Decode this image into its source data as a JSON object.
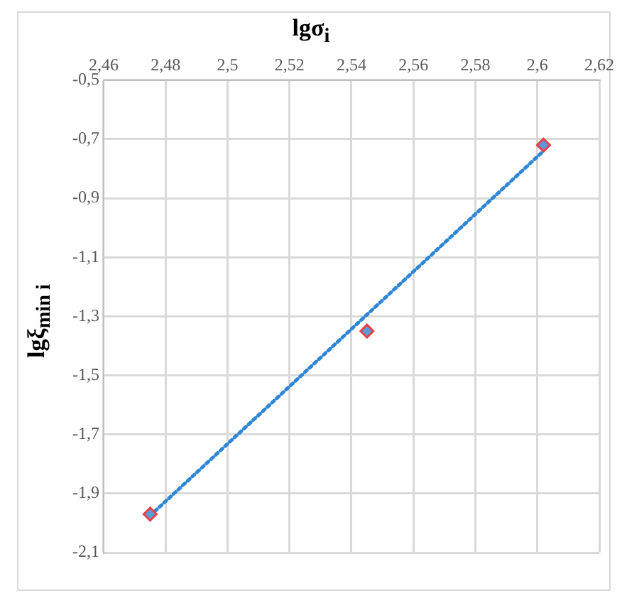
{
  "chart_data": {
    "type": "scatter",
    "xlabel": "lgσ$_{i}$",
    "ylabel": "lgξ$_{min i}$",
    "xlim": [
      2.46,
      2.62
    ],
    "xticks": [
      {
        "value": 2.46,
        "label": "2,46"
      },
      {
        "value": 2.48,
        "label": "2,48"
      },
      {
        "value": 2.5,
        "label": "2,5"
      },
      {
        "value": 2.52,
        "label": "2,52"
      },
      {
        "value": 2.54,
        "label": "2,54"
      },
      {
        "value": 2.56,
        "label": "2,56"
      },
      {
        "value": 2.58,
        "label": "2,58"
      },
      {
        "value": 2.6,
        "label": "2,6"
      },
      {
        "value": 2.62,
        "label": "2,62"
      }
    ],
    "ylim": [
      -2.1,
      -0.5
    ],
    "yticks": [
      {
        "value": -2.1,
        "label": "-2,1"
      },
      {
        "value": -1.9,
        "label": "-1,9"
      },
      {
        "value": -1.7,
        "label": "-1,7"
      },
      {
        "value": -1.5,
        "label": "-1,5"
      },
      {
        "value": -1.3,
        "label": "-1,3"
      },
      {
        "value": -1.1,
        "label": "-1,1"
      },
      {
        "value": -0.9,
        "label": "-0,9"
      },
      {
        "value": -0.7,
        "label": "-0,7"
      },
      {
        "value": -0.5,
        "label": "-0,5"
      }
    ],
    "grid": true,
    "legend": false,
    "series": [
      {
        "type": "scatter",
        "x": [
          2.475,
          2.545,
          2.602
        ],
        "values": [
          -1.97,
          -1.35,
          -0.72
        ],
        "color": "#5b9bd5",
        "marker": "diamond"
      },
      {
        "type": "line",
        "x": [
          2.475,
          2.602
        ],
        "values": [
          -1.975,
          -0.74
        ],
        "color": "#2e86d4",
        "line_style": "dotted",
        "marker": "none"
      }
    ]
  }
}
